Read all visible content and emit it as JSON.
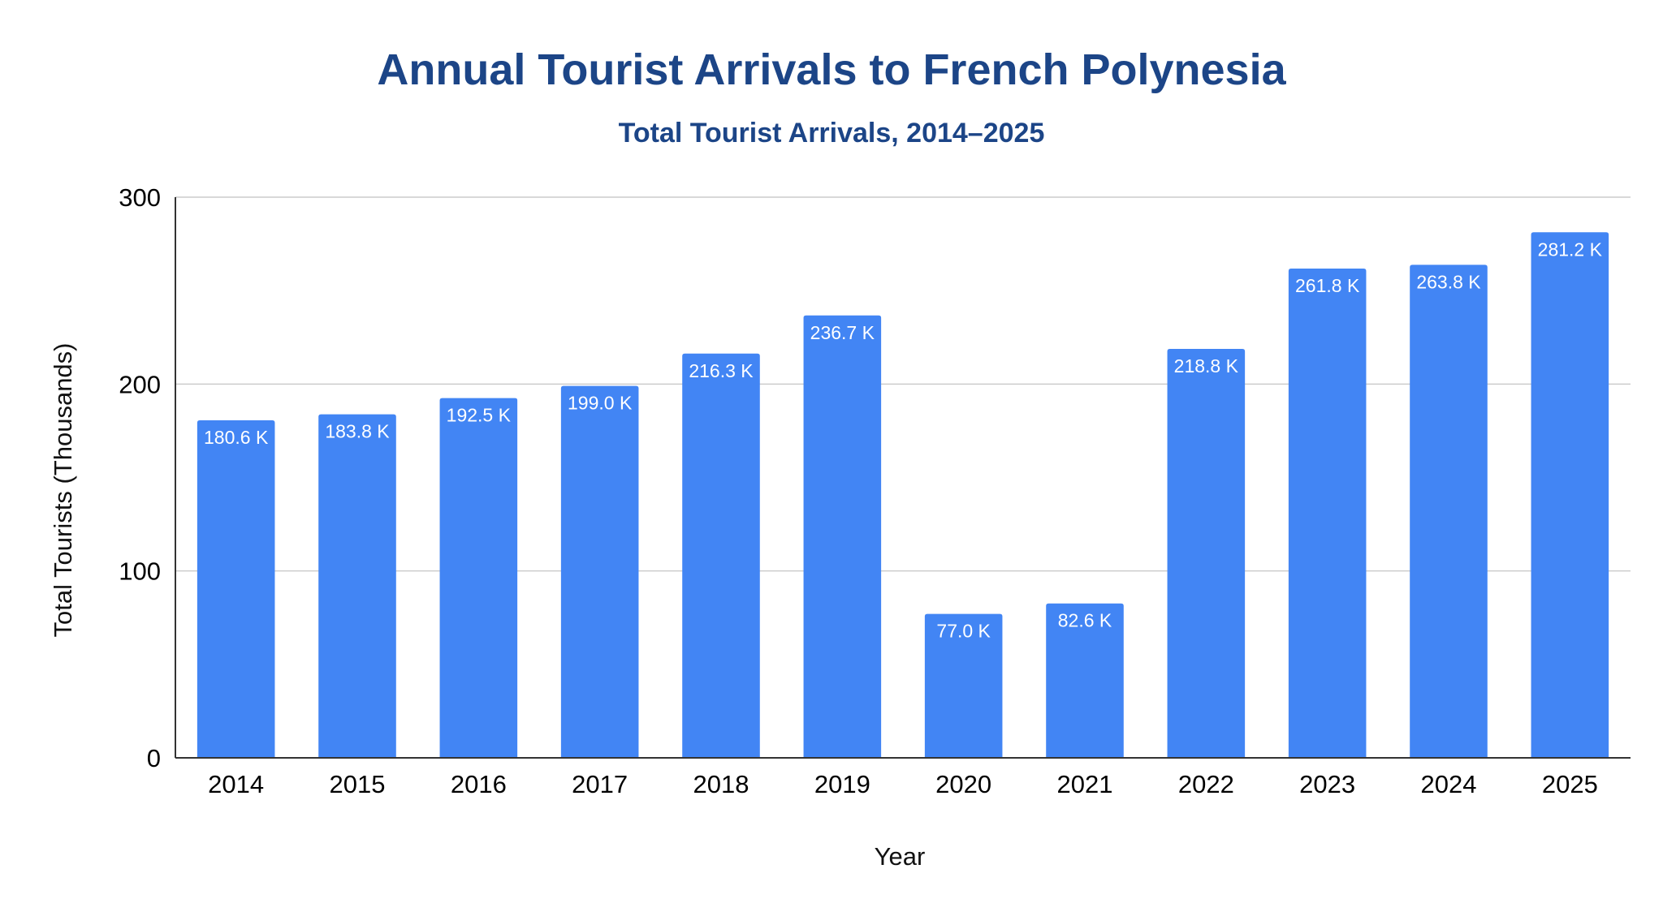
{
  "chart_data": {
    "type": "bar",
    "title": "Annual Tourist Arrivals to French Polynesia",
    "subtitle": "Total Tourist Arrivals, 2014–2025",
    "xlabel": "Year",
    "ylabel": "Total Tourists (Thousands)",
    "categories": [
      "2014",
      "2015",
      "2016",
      "2017",
      "2018",
      "2019",
      "2020",
      "2021",
      "2022",
      "2023",
      "2024",
      "2025"
    ],
    "values": [
      180.6,
      183.8,
      192.5,
      199.0,
      216.3,
      236.7,
      77.0,
      82.6,
      218.8,
      261.8,
      263.8,
      281.2
    ],
    "data_labels": [
      "180.6 K",
      "183.8 K",
      "192.5 K",
      "199.0 K",
      "216.3 K",
      "236.7 K",
      "77.0 K",
      "82.6 K",
      "218.8 K",
      "261.8 K",
      "263.8 K",
      "281.2 K"
    ],
    "ylim": [
      0,
      300
    ],
    "yticks": [
      0,
      100,
      200,
      300
    ],
    "grid": true,
    "legend": "none",
    "colors": {
      "bar": "#4285f4",
      "title": "#1c4587",
      "gridline": "#cccccc",
      "axis": "#333333"
    }
  }
}
